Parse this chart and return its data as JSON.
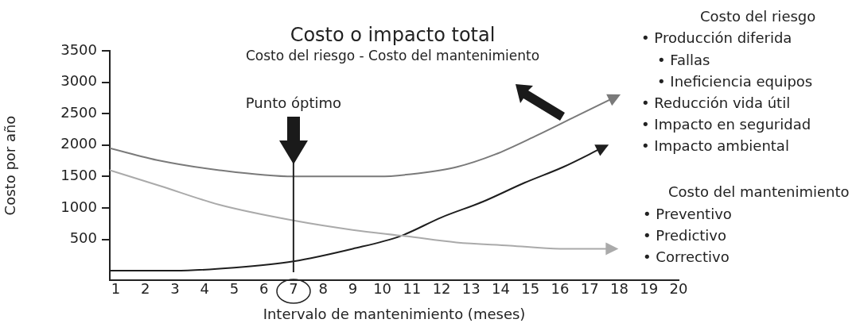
{
  "chart_data": {
    "type": "line",
    "title": "Costo o impacto total",
    "subtitle": "Costo del riesgo - Costo del mantenimiento",
    "xlabel": "Intervalo de mantenimiento (meses)",
    "ylabel": "Costo por año",
    "xlim": [
      0.8,
      20
    ],
    "xticks": [
      1,
      2,
      3,
      4,
      5,
      6,
      7,
      8,
      9,
      10,
      11,
      12,
      13,
      14,
      15,
      16,
      17,
      18,
      19,
      20
    ],
    "ylim": [
      -150,
      3500
    ],
    "yticks": [
      500,
      1000,
      1500,
      2000,
      2500,
      3000,
      3500
    ],
    "grid": false,
    "legend": false,
    "marker": "none",
    "line_style": "solid",
    "series": [
      {
        "color": "#7a7a7a",
        "x": [
          0.8,
          2.5,
          4.5,
          7,
          8.5,
          9.9,
          11.2,
          12.5,
          13.8,
          15.2,
          16.5,
          17.8
        ],
        "values": [
          1950,
          1750,
          1600,
          1500,
          1500,
          1500,
          1550,
          1650,
          1850,
          2150,
          2450,
          2750
        ]
      },
      {
        "color": "#aaaaaa",
        "x": [
          0.8,
          2.5,
          4.5,
          7,
          9,
          10.8,
          12.5,
          14.3,
          16,
          17.7
        ],
        "values": [
          1600,
          1350,
          1050,
          800,
          650,
          550,
          450,
          400,
          350,
          350
        ]
      },
      {
        "color": "#1e1e1e",
        "x": [
          0.8,
          2,
          3,
          5,
          7,
          9,
          10.6,
          12,
          13.4,
          14.8,
          16.1,
          17.4
        ],
        "values": [
          0,
          0,
          0,
          50,
          150,
          350,
          550,
          850,
          1100,
          1400,
          1650,
          1950
        ]
      }
    ],
    "ref_lines": [
      {
        "axis": "x",
        "value": 7,
        "label": "Punto óptimo"
      }
    ],
    "annotations": [
      "Costo del riesgo",
      "• Producción diferida",
      "• Fallas",
      "• Ineficiencia equipos",
      "• Reducción vida útil",
      "• Impacto en seguridad",
      "• Impacto ambiental",
      "Costo del mantenimiento",
      "• Preventivo",
      "• Predictivo",
      "• Correctivo"
    ]
  }
}
